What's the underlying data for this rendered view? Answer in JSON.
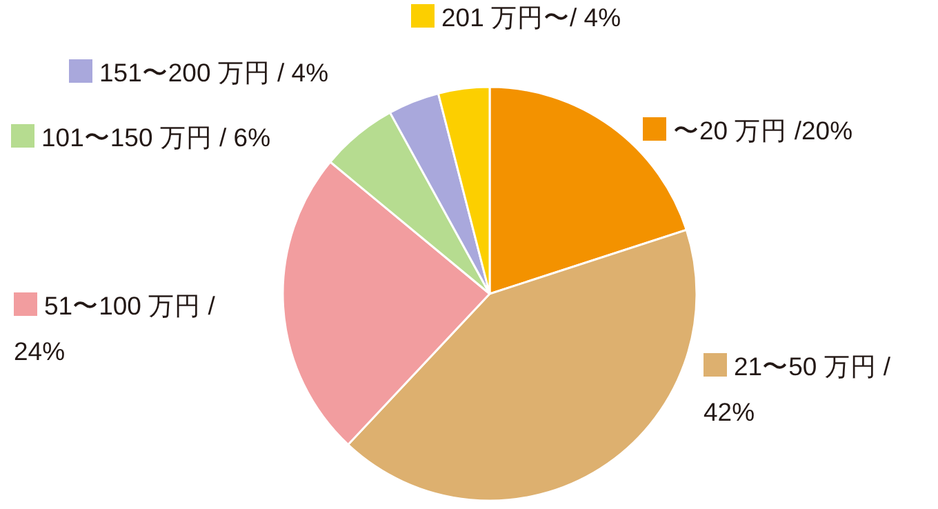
{
  "chart_data": {
    "type": "pie",
    "categories": [
      "〜20 万円",
      "21〜50 万円",
      "51〜100 万円",
      "101〜150 万円",
      "151〜200 万円",
      "201 万円〜"
    ],
    "values": [
      20,
      42,
      24,
      6,
      4,
      4
    ],
    "value_labels": [
      " /20%",
      " / 42%",
      " / 24%",
      " / 6%",
      " / 4%",
      "/ 4%"
    ],
    "legend": "left",
    "colors": [
      "#f39200",
      "#ddb06f",
      "#f29d9f",
      "#b6dc90",
      "#a9a8dc",
      "#fccf00"
    ]
  }
}
